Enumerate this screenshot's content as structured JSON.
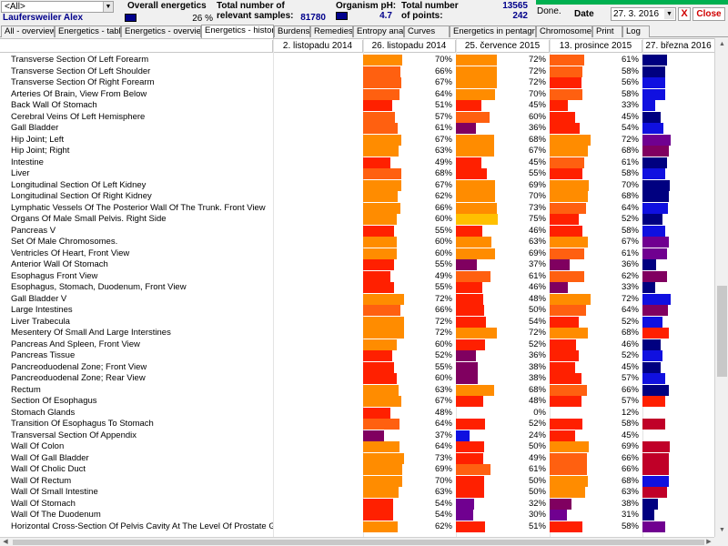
{
  "header": {
    "filter_value": "<All>",
    "user_name": "Laufersweiler Alex",
    "overall_energetics_label": "Overall energetics",
    "overall_energetics_pct": "26 %",
    "relevant_samples_label": "Total number of relevant samples:",
    "relevant_samples_value": "81780",
    "ph_label": "Organism pH:",
    "ph_value": "4.7",
    "points_label": "Total number of points:",
    "points_value_1": "13565",
    "points_value_2": "242",
    "status_text": "Done.",
    "date_label": "Date",
    "date_value": "27. 3. 2016",
    "clear_label": "X",
    "close_label": "Close"
  },
  "tabs": [
    "All - overview",
    "Energetics - table",
    "Energetics - overview",
    "Energetics - history",
    "Burdens",
    "Remedies",
    "Entropy analysis",
    "Curves",
    "Energetics in pentagram",
    "Chromosomes",
    "Print",
    "Log"
  ],
  "active_tab": 3,
  "dates": [
    "2. listopadu 2014",
    "26. listopadu 2014",
    "25. července 2015",
    "13. prosince 2015",
    "27. března 2016"
  ],
  "colors": {
    "yellow": "#ffc000",
    "orange": "#ff8c00",
    "dorange": "#ff6010",
    "red": "#ff2000",
    "crimson": "#c00028",
    "purple": "#800060",
    "violet": "#700090",
    "blue": "#1010e0",
    "navy": "#000080"
  },
  "rows": [
    {
      "name": "Transverse Section Of Left Forearm",
      "v": [
        70,
        72,
        61
      ],
      "c": [
        "orange",
        "orange",
        "dorange",
        "navy"
      ]
    },
    {
      "name": "Transverse Section Of Left Shoulder",
      "v": [
        66,
        72,
        58
      ],
      "c": [
        "dorange",
        "orange",
        "dorange",
        "navy"
      ]
    },
    {
      "name": "Transverse Section Of Right Forearm",
      "v": [
        67,
        72,
        56
      ],
      "c": [
        "dorange",
        "orange",
        "red",
        "blue"
      ]
    },
    {
      "name": "Arteries Of Brain, View From Below",
      "v": [
        64,
        70,
        58
      ],
      "c": [
        "dorange",
        "orange",
        "dorange",
        "blue"
      ]
    },
    {
      "name": "Back Wall Of Stomach",
      "v": [
        51,
        45,
        33
      ],
      "c": [
        "red",
        "red",
        "red",
        "blue"
      ]
    },
    {
      "name": "Cerebral Veins Of Left Hemisphere",
      "v": [
        57,
        60,
        45
      ],
      "c": [
        "dorange",
        "dorange",
        "red",
        "navy"
      ]
    },
    {
      "name": "Gall Bladder",
      "v": [
        61,
        36,
        54
      ],
      "c": [
        "dorange",
        "purple",
        "red",
        "blue"
      ]
    },
    {
      "name": "Hip Joint; Left",
      "v": [
        67,
        68,
        72
      ],
      "c": [
        "orange",
        "orange",
        "orange",
        "violet"
      ]
    },
    {
      "name": "Hip Joint; Right",
      "v": [
        63,
        67,
        68
      ],
      "c": [
        "orange",
        "orange",
        "orange",
        "purple"
      ]
    },
    {
      "name": "Intestine",
      "v": [
        49,
        45,
        61
      ],
      "c": [
        "red",
        "red",
        "dorange",
        "navy"
      ]
    },
    {
      "name": "Liver",
      "v": [
        68,
        55,
        58
      ],
      "c": [
        "dorange",
        "red",
        "red",
        "blue"
      ]
    },
    {
      "name": "Longitudinal Section Of Left Kidney",
      "v": [
        67,
        69,
        70
      ],
      "c": [
        "orange",
        "orange",
        "orange",
        "navy"
      ]
    },
    {
      "name": "Longitudinal Section Of Right Kidney",
      "v": [
        62,
        70,
        68
      ],
      "c": [
        "orange",
        "orange",
        "orange",
        "navy"
      ]
    },
    {
      "name": "Lymphatic Vessels Of The Posterior Wall Of The Trunk. Front View",
      "v": [
        66,
        73,
        64
      ],
      "c": [
        "orange",
        "orange",
        "dorange",
        "blue"
      ]
    },
    {
      "name": "Organs Of Male Small Pelvis. Right Side",
      "v": [
        60,
        75,
        52
      ],
      "c": [
        "orange",
        "yellow",
        "red",
        "navy"
      ]
    },
    {
      "name": "Pancreas V",
      "v": [
        55,
        46,
        58
      ],
      "c": [
        "red",
        "red",
        "red",
        "blue"
      ]
    },
    {
      "name": "Set Of Male Chromosomes.",
      "v": [
        60,
        63,
        67
      ],
      "c": [
        "orange",
        "orange",
        "orange",
        "violet"
      ]
    },
    {
      "name": "Ventricles Of Heart, Front View",
      "v": [
        60,
        69,
        61
      ],
      "c": [
        "orange",
        "orange",
        "dorange",
        "violet"
      ]
    },
    {
      "name": "Anterior Wall Of Stomach",
      "v": [
        55,
        37,
        36
      ],
      "c": [
        "red",
        "purple",
        "purple",
        "navy"
      ]
    },
    {
      "name": "Esophagus Front View",
      "v": [
        49,
        61,
        62
      ],
      "c": [
        "red",
        "dorange",
        "dorange",
        "purple"
      ]
    },
    {
      "name": "Esophagus, Stomach, Duodenum, Front View",
      "v": [
        55,
        46,
        33
      ],
      "c": [
        "red",
        "red",
        "purple",
        "navy"
      ]
    },
    {
      "name": "Gall Bladder V",
      "v": [
        72,
        48,
        72
      ],
      "c": [
        "orange",
        "red",
        "orange",
        "blue"
      ]
    },
    {
      "name": "Large Intestines",
      "v": [
        66,
        50,
        64
      ],
      "c": [
        "dorange",
        "red",
        "dorange",
        "purple"
      ]
    },
    {
      "name": "Liver Trabecula",
      "v": [
        72,
        54,
        52
      ],
      "c": [
        "orange",
        "red",
        "red",
        "blue"
      ]
    },
    {
      "name": "Mesentery Of Small And Large Interstines",
      "v": [
        72,
        72,
        68
      ],
      "c": [
        "orange",
        "orange",
        "orange",
        "red"
      ]
    },
    {
      "name": "Pancreas And Spleen, Front View",
      "v": [
        60,
        52,
        46
      ],
      "c": [
        "orange",
        "red",
        "red",
        "navy"
      ]
    },
    {
      "name": "Pancreas Tissue",
      "v": [
        52,
        36,
        52
      ],
      "c": [
        "red",
        "purple",
        "red",
        "blue"
      ]
    },
    {
      "name": "Pancreoduodenal Zone; Front View",
      "v": [
        55,
        38,
        45
      ],
      "c": [
        "red",
        "purple",
        "red",
        "navy"
      ]
    },
    {
      "name": "Pancreoduodenal Zone; Rear View",
      "v": [
        60,
        38,
        57
      ],
      "c": [
        "red",
        "purple",
        "red",
        "blue"
      ]
    },
    {
      "name": "Rectum",
      "v": [
        63,
        68,
        66
      ],
      "c": [
        "orange",
        "orange",
        "dorange",
        "navy"
      ]
    },
    {
      "name": "Section Of Esophagus",
      "v": [
        67,
        48,
        57
      ],
      "c": [
        "orange",
        "red",
        "red",
        "red"
      ]
    },
    {
      "name": "Stomach Glands",
      "v": [
        48,
        0,
        12
      ],
      "c": [
        "red",
        "white",
        "white",
        "white"
      ]
    },
    {
      "name": "Transition Of Esophagus To Stomach",
      "v": [
        64,
        52,
        58
      ],
      "c": [
        "dorange",
        "red",
        "red",
        "crimson"
      ]
    },
    {
      "name": "Transversal Section Of Appendix",
      "v": [
        37,
        24,
        45
      ],
      "c": [
        "purple",
        "blue",
        "red",
        "white"
      ]
    },
    {
      "name": "Wall Of Colon",
      "v": [
        64,
        50,
        69
      ],
      "c": [
        "orange",
        "red",
        "orange",
        "crimson"
      ]
    },
    {
      "name": "Wall Of Gall Bladder",
      "v": [
        73,
        49,
        66
      ],
      "c": [
        "orange",
        "red",
        "dorange",
        "crimson"
      ]
    },
    {
      "name": "Wall Of Cholic Duct",
      "v": [
        69,
        61,
        66
      ],
      "c": [
        "orange",
        "dorange",
        "dorange",
        "crimson"
      ]
    },
    {
      "name": "Wall Of Rectum",
      "v": [
        70,
        50,
        68
      ],
      "c": [
        "orange",
        "red",
        "orange",
        "blue"
      ]
    },
    {
      "name": "Wall Of Small Intestine",
      "v": [
        63,
        50,
        63
      ],
      "c": [
        "orange",
        "red",
        "orange",
        "crimson"
      ]
    },
    {
      "name": "Wall Of Stomach",
      "v": [
        54,
        32,
        38
      ],
      "c": [
        "red",
        "violet",
        "purple",
        "navy"
      ]
    },
    {
      "name": "Wall Of The Duodenum",
      "v": [
        54,
        30,
        31
      ],
      "c": [
        "red",
        "violet",
        "violet",
        "navy"
      ]
    },
    {
      "name": "Horizontal Cross-Section Of Pelvis Cavity At The Level Of Prostate Gland",
      "v": [
        62,
        51,
        58
      ],
      "c": [
        "orange",
        "red",
        "red",
        "violet"
      ]
    }
  ]
}
